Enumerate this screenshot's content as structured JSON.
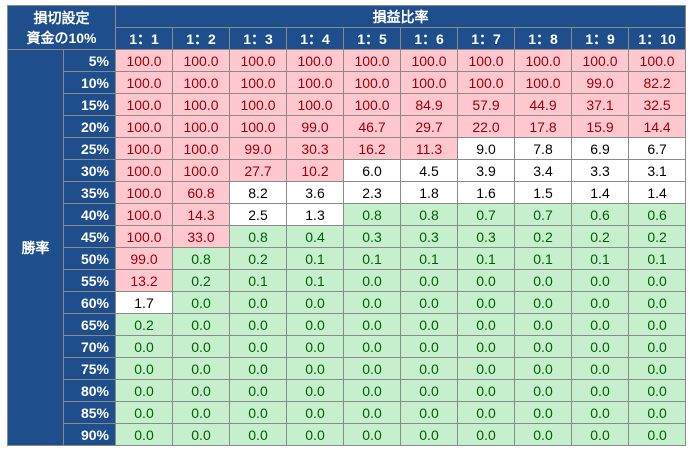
{
  "corner": {
    "line1": "損切設定",
    "line2": "資金の10%"
  },
  "col_group_label": "損益比率",
  "row_group_label": "勝率",
  "columns": [
    "1：1",
    "1：2",
    "1：3",
    "1：4",
    "1：5",
    "1：6",
    "1：7",
    "1：8",
    "1：9",
    "1：10"
  ],
  "rows": [
    {
      "label": "5%",
      "values": [
        "100.0",
        "100.0",
        "100.0",
        "100.0",
        "100.0",
        "100.0",
        "100.0",
        "100.0",
        "100.0",
        "100.0"
      ],
      "styles": [
        "r",
        "r",
        "r",
        "r",
        "r",
        "r",
        "r",
        "r",
        "r",
        "r"
      ]
    },
    {
      "label": "10%",
      "values": [
        "100.0",
        "100.0",
        "100.0",
        "100.0",
        "100.0",
        "100.0",
        "100.0",
        "100.0",
        "99.0",
        "82.2"
      ],
      "styles": [
        "r",
        "r",
        "r",
        "r",
        "r",
        "r",
        "r",
        "r",
        "r",
        "r"
      ]
    },
    {
      "label": "15%",
      "values": [
        "100.0",
        "100.0",
        "100.0",
        "100.0",
        "100.0",
        "84.9",
        "57.9",
        "44.9",
        "37.1",
        "32.5"
      ],
      "styles": [
        "r",
        "r",
        "r",
        "r",
        "r",
        "r",
        "r",
        "r",
        "r",
        "r"
      ]
    },
    {
      "label": "20%",
      "values": [
        "100.0",
        "100.0",
        "100.0",
        "99.0",
        "46.7",
        "29.7",
        "22.0",
        "17.8",
        "15.9",
        "14.4"
      ],
      "styles": [
        "r",
        "r",
        "r",
        "r",
        "r",
        "r",
        "r",
        "r",
        "r",
        "r"
      ]
    },
    {
      "label": "25%",
      "values": [
        "100.0",
        "100.0",
        "99.0",
        "30.3",
        "16.2",
        "11.3",
        "9.0",
        "7.8",
        "6.9",
        "6.7"
      ],
      "styles": [
        "r",
        "r",
        "r",
        "r",
        "r",
        "r",
        "w",
        "w",
        "w",
        "w"
      ]
    },
    {
      "label": "30%",
      "values": [
        "100.0",
        "100.0",
        "27.7",
        "10.2",
        "6.0",
        "4.5",
        "3.9",
        "3.4",
        "3.3",
        "3.1"
      ],
      "styles": [
        "r",
        "r",
        "r",
        "r",
        "w",
        "w",
        "w",
        "w",
        "w",
        "w"
      ]
    },
    {
      "label": "35%",
      "values": [
        "100.0",
        "60.8",
        "8.2",
        "3.6",
        "2.3",
        "1.8",
        "1.6",
        "1.5",
        "1.4",
        "1.4"
      ],
      "styles": [
        "r",
        "r",
        "w",
        "w",
        "w",
        "w",
        "w",
        "w",
        "w",
        "w"
      ]
    },
    {
      "label": "40%",
      "values": [
        "100.0",
        "14.3",
        "2.5",
        "1.3",
        "0.8",
        "0.8",
        "0.7",
        "0.7",
        "0.6",
        "0.6"
      ],
      "styles": [
        "r",
        "r",
        "w",
        "w",
        "g",
        "g",
        "g",
        "g",
        "g",
        "g"
      ]
    },
    {
      "label": "45%",
      "values": [
        "100.0",
        "33.0",
        "0.8",
        "0.4",
        "0.3",
        "0.3",
        "0.3",
        "0.2",
        "0.2",
        "0.2"
      ],
      "styles": [
        "r",
        "r",
        "g",
        "g",
        "g",
        "g",
        "g",
        "g",
        "g",
        "g"
      ]
    },
    {
      "label": "50%",
      "values": [
        "99.0",
        "0.8",
        "0.2",
        "0.1",
        "0.1",
        "0.1",
        "0.1",
        "0.1",
        "0.1",
        "0.1"
      ],
      "styles": [
        "r",
        "g",
        "g",
        "g",
        "g",
        "g",
        "g",
        "g",
        "g",
        "g"
      ]
    },
    {
      "label": "55%",
      "values": [
        "13.2",
        "0.2",
        "0.1",
        "0.1",
        "0.0",
        "0.0",
        "0.0",
        "0.0",
        "0.0",
        "0.0"
      ],
      "styles": [
        "r",
        "g",
        "g",
        "g",
        "g",
        "g",
        "g",
        "g",
        "g",
        "g"
      ]
    },
    {
      "label": "60%",
      "values": [
        "1.7",
        "0.0",
        "0.0",
        "0.0",
        "0.0",
        "0.0",
        "0.0",
        "0.0",
        "0.0",
        "0.0"
      ],
      "styles": [
        "w",
        "g",
        "g",
        "g",
        "g",
        "g",
        "g",
        "g",
        "g",
        "g"
      ]
    },
    {
      "label": "65%",
      "values": [
        "0.2",
        "0.0",
        "0.0",
        "0.0",
        "0.0",
        "0.0",
        "0.0",
        "0.0",
        "0.0",
        "0.0"
      ],
      "styles": [
        "g",
        "g",
        "g",
        "g",
        "g",
        "g",
        "g",
        "g",
        "g",
        "g"
      ]
    },
    {
      "label": "70%",
      "values": [
        "0.0",
        "0.0",
        "0.0",
        "0.0",
        "0.0",
        "0.0",
        "0.0",
        "0.0",
        "0.0",
        "0.0"
      ],
      "styles": [
        "g",
        "g",
        "g",
        "g",
        "g",
        "g",
        "g",
        "g",
        "g",
        "g"
      ]
    },
    {
      "label": "75%",
      "values": [
        "0.0",
        "0.0",
        "0.0",
        "0.0",
        "0.0",
        "0.0",
        "0.0",
        "0.0",
        "0.0",
        "0.0"
      ],
      "styles": [
        "g",
        "g",
        "g",
        "g",
        "g",
        "g",
        "g",
        "g",
        "g",
        "g"
      ]
    },
    {
      "label": "80%",
      "values": [
        "0.0",
        "0.0",
        "0.0",
        "0.0",
        "0.0",
        "0.0",
        "0.0",
        "0.0",
        "0.0",
        "0.0"
      ],
      "styles": [
        "g",
        "g",
        "g",
        "g",
        "g",
        "g",
        "g",
        "g",
        "g",
        "g"
      ]
    },
    {
      "label": "85%",
      "values": [
        "0.0",
        "0.0",
        "0.0",
        "0.0",
        "0.0",
        "0.0",
        "0.0",
        "0.0",
        "0.0",
        "0.0"
      ],
      "styles": [
        "g",
        "g",
        "g",
        "g",
        "g",
        "g",
        "g",
        "g",
        "g",
        "g"
      ]
    },
    {
      "label": "90%",
      "values": [
        "0.0",
        "0.0",
        "0.0",
        "0.0",
        "0.0",
        "0.0",
        "0.0",
        "0.0",
        "0.0",
        "0.0"
      ],
      "styles": [
        "g",
        "g",
        "g",
        "g",
        "g",
        "g",
        "g",
        "g",
        "g",
        "g"
      ]
    }
  ],
  "colors": {
    "header_bg": "#1f4e8c",
    "red_fill": "#ffc7ce",
    "red_text": "#9c0006",
    "green_fill": "#c6efce",
    "green_text": "#006100",
    "white_fill": "#ffffff"
  }
}
